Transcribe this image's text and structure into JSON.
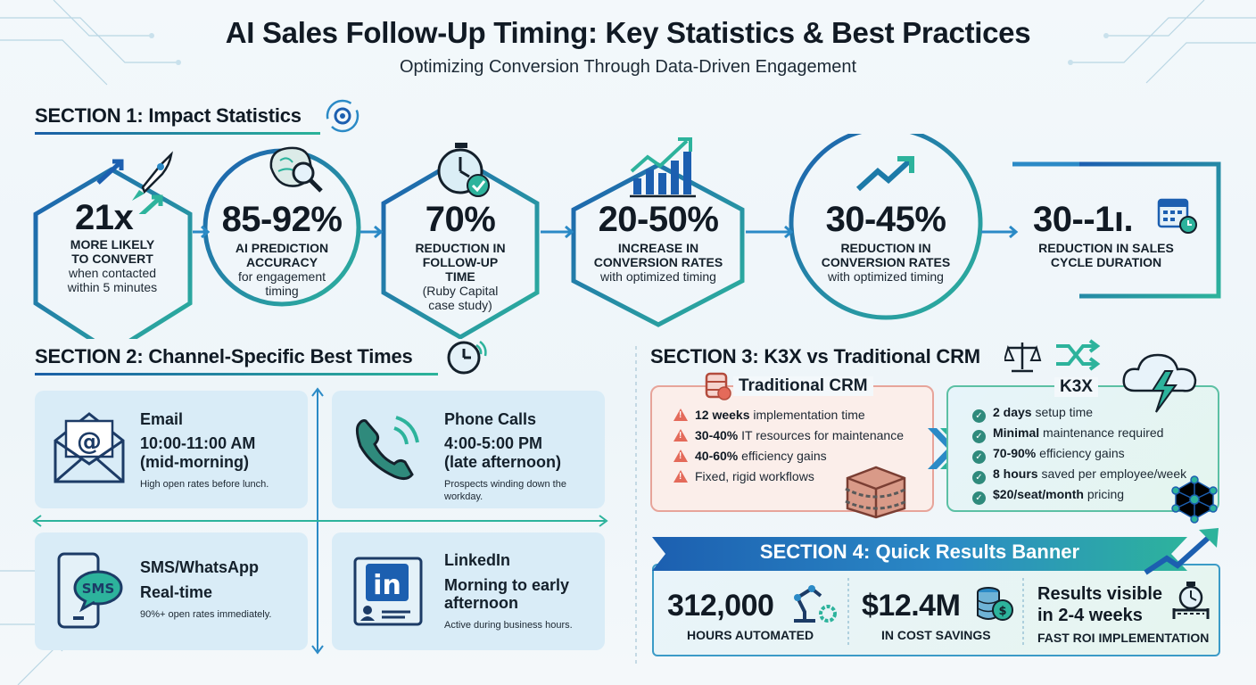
{
  "header": {
    "title": "AI Sales Follow-Up Timing: Key Statistics & Best Practices",
    "subtitle": "Optimizing Conversion Through Data-Driven Engagement"
  },
  "section1": {
    "heading": "SECTION 1: Impact Statistics",
    "stats": [
      {
        "value": "21x",
        "label": "MORE LIKELY TO CONVERT",
        "detail": "when contacted within 5 minutes",
        "icon": "rocket-icon"
      },
      {
        "value": "85-92%",
        "label": "AI PREDICTION ACCURACY",
        "detail": "for engagement timing",
        "icon": "brain-search-icon"
      },
      {
        "value": "70%",
        "label": "REDUCTION IN FOLLOW-UP TIME",
        "detail": "(Ruby Capital case study)",
        "icon": "stopwatch-check-icon"
      },
      {
        "value": "20-50%",
        "label": "INCREASE IN CONVERSION RATES",
        "detail": "with optimized timing",
        "icon": "bar-chart-growth-icon"
      },
      {
        "value": "30-45%",
        "label": "REDUCTION IN CONVERSION RATES",
        "detail": "with optimized timing",
        "icon": "trend-up-arrow-icon"
      },
      {
        "value": "30--1ı.",
        "label": "REDUCTION IN SALES CYCLE DURATION",
        "detail": "",
        "icon": "calendar-clock-icon"
      }
    ]
  },
  "section2": {
    "heading": "SECTION 2: Channel-Specific Best Times",
    "channels": [
      {
        "name": "Email",
        "time": "10:00-11:00 AM (mid-morning)",
        "time_line1": "10:00-11:00 AM",
        "time_line2": "(mid-morning)",
        "desc": "High open rates before lunch.",
        "icon": "envelope-icon"
      },
      {
        "name": "Phone Calls",
        "time": "4:00-5:00 PM (late afternoon)",
        "time_line1": "4:00-5:00 PM",
        "time_line2": "(late afternoon)",
        "desc": "Prospects winding down the workday.",
        "icon": "phone-icon"
      },
      {
        "name": "SMS/WhatsApp",
        "time": "Real-time",
        "time_line1": "Real-time",
        "time_line2": "",
        "desc": "90%+ open rates immediately.",
        "icon": "sms-phone-icon"
      },
      {
        "name": "LinkedIn",
        "time": "Morning to early afternoon",
        "time_line1": "Morning to early",
        "time_line2": "afternoon",
        "desc": "Active during business hours.",
        "icon": "linkedin-icon"
      }
    ]
  },
  "section3": {
    "heading": "SECTION 3: K3X vs Traditional CRM",
    "traditional": {
      "title": "Traditional CRM",
      "items": [
        {
          "bold": "12 weeks",
          "rest": " implementation time"
        },
        {
          "bold": "30-40%",
          "rest": " IT resources for maintenance"
        },
        {
          "bold": "40-60%",
          "rest": " efficiency gains"
        },
        {
          "bold": "",
          "rest": "Fixed, rigid workflows"
        }
      ]
    },
    "k3x": {
      "title": "K3X",
      "items": [
        {
          "bold": "2 days",
          "rest": " setup time"
        },
        {
          "bold": "Minimal",
          "rest": " maintenance required"
        },
        {
          "bold": "70-90%",
          "rest": " efficiency gains"
        },
        {
          "bold": "8 hours",
          "rest": " saved per employee/week"
        },
        {
          "bold": "$20/seat/month",
          "rest": " pricing"
        }
      ]
    }
  },
  "section4": {
    "heading": "SECTION 4: Quick Results Banner",
    "results": [
      {
        "value": "312,000",
        "label": "HOURS AUTOMATED",
        "icon": "robot-arm-gear-icon"
      },
      {
        "value": "$12.4M",
        "label": "IN COST SAVINGS",
        "icon": "coin-stack-icon"
      },
      {
        "value_line1": "Results visible",
        "value_line2": "in 2-4 weeks",
        "label": "FAST ROI IMPLEMENTATION",
        "icon": "stopwatch-finish-icon"
      }
    ]
  },
  "colors": {
    "navy": "#1c5fb0",
    "teal": "#2db39c",
    "text": "#14202b",
    "card_blue": "#d9ecf7",
    "warning_red": "#e46a5a"
  }
}
